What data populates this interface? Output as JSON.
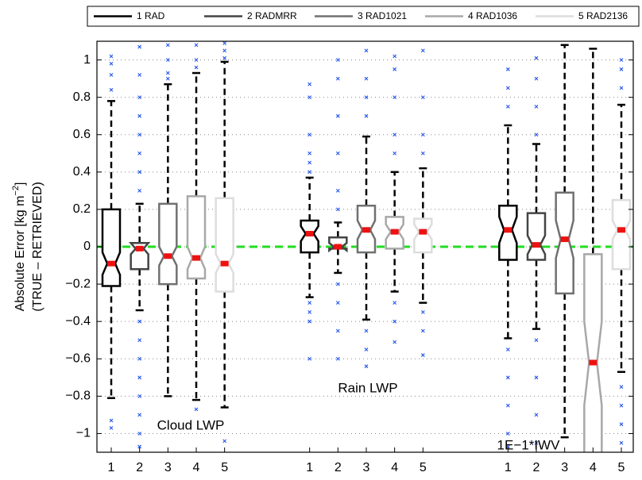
{
  "chart_data": {
    "type": "box",
    "ylabel": "Absolute Error [kg m",
    "ylabel_superscript": "−2",
    "ylabel_suffix": "]",
    "ylabel2": "(TRUE – RETRIEVED)",
    "categories": [
      "1",
      "2",
      "3",
      "4",
      "5"
    ],
    "groups": [
      "Cloud LWP",
      "Rain LWP",
      "1E−1*IWV"
    ],
    "ylim": [
      -1.1,
      1.1
    ],
    "yticks": [
      {
        "value": -1,
        "label": "−1"
      },
      {
        "value": -0.8,
        "label": "−0.8"
      },
      {
        "value": -0.6,
        "label": "−0.6"
      },
      {
        "value": -0.4,
        "label": "−0.4"
      },
      {
        "value": -0.2,
        "label": "−0.2"
      },
      0,
      0.2,
      0.4,
      0.6,
      0.8,
      1
    ],
    "grid": true,
    "reference_line": 0,
    "reference_color": "#22dd22",
    "median_color": "#ee1111",
    "outlier_color": "#2255ee",
    "series": [
      {
        "name": "1 RAD",
        "color": "#000000",
        "low": [
          -0.81,
          -0.27,
          -0.49
        ],
        "q1": [
          -0.21,
          -0.03,
          -0.07
        ],
        "notch_low": [
          -0.15,
          0.03,
          0.02
        ],
        "median": [
          -0.09,
          0.07,
          0.09
        ],
        "notch_high": [
          -0.03,
          0.11,
          0.16
        ],
        "q3": [
          0.2,
          0.14,
          0.22
        ],
        "high": [
          0.78,
          0.37,
          0.65
        ],
        "outliers": [
          [
            1.02,
            0.98,
            0.92,
            0.84,
            -0.93,
            -0.97
          ],
          [
            0.87,
            0.8,
            0.6,
            0.5,
            0.45,
            0.4,
            -0.3,
            -0.35,
            -0.4,
            -0.6
          ],
          [
            0.95,
            0.85,
            0.75,
            -0.55,
            -0.7,
            -0.85,
            -1.0,
            -1.07
          ]
        ]
      },
      {
        "name": "2 RADMRR",
        "color": "#444444",
        "low": [
          -0.34,
          -0.14,
          -0.44
        ],
        "q1": [
          -0.12,
          -0.01,
          -0.07
        ],
        "notch_low": [
          -0.04,
          -0.02,
          -0.04
        ],
        "median": [
          -0.01,
          0.0,
          0.01
        ],
        "notch_high": [
          0.02,
          0.02,
          0.06
        ],
        "q3": [
          0.02,
          0.05,
          0.18
        ],
        "high": [
          0.23,
          0.13,
          0.55
        ],
        "outliers": [
          [
            1.07,
            0.92,
            0.8,
            0.7,
            0.6,
            0.5,
            0.4,
            0.3,
            -0.4,
            -0.5,
            -0.6,
            -0.7,
            -0.8,
            -0.9,
            -1.0,
            -1.07
          ],
          [
            1.0,
            0.9,
            0.7,
            0.5,
            0.3,
            0.2,
            -0.2,
            -0.3,
            -0.45,
            -0.6
          ],
          [
            1.01,
            0.9,
            0.75,
            0.6,
            -0.5,
            -0.7,
            -0.9,
            -1.05
          ]
        ]
      },
      {
        "name": "3 RAD1021",
        "color": "#707070",
        "low": [
          -0.8,
          -0.39,
          -1.02
        ],
        "q1": [
          -0.2,
          -0.03,
          -0.25
        ],
        "notch_low": [
          -0.1,
          0.04,
          -0.06
        ],
        "median": [
          -0.05,
          0.09,
          0.04
        ],
        "notch_high": [
          0.0,
          0.14,
          0.14
        ],
        "q3": [
          0.23,
          0.22,
          0.29
        ],
        "high": [
          0.87,
          0.59,
          1.08
        ],
        "outliers": [
          [
            1.08,
            1.0,
            0.93,
            0.9
          ],
          [
            1.05,
            0.9,
            0.8,
            0.7,
            -0.45,
            -0.55,
            -0.64
          ],
          []
        ]
      },
      {
        "name": "4 RAD1036",
        "color": "#a8a8a8",
        "low": [
          -0.82,
          -0.24,
          null
        ],
        "q1": [
          -0.17,
          -0.01,
          -1.2
        ],
        "notch_low": [
          -0.12,
          0.04,
          -0.85
        ],
        "median": [
          -0.06,
          0.08,
          -0.62
        ],
        "notch_high": [
          0.0,
          0.12,
          -0.4
        ],
        "q3": [
          0.27,
          0.16,
          -0.04
        ],
        "high": [
          0.93,
          0.4,
          1.06
        ],
        "outliers": [
          [
            1.08,
            1.0,
            0.96,
            -0.87
          ],
          [
            1.02,
            0.95,
            0.8,
            0.6,
            0.5,
            -0.3,
            -0.4,
            -0.51
          ],
          []
        ]
      },
      {
        "name": "5 RAD2136",
        "color": "#dddddd",
        "low": [
          -0.86,
          -0.3,
          -0.67
        ],
        "q1": [
          -0.24,
          -0.03,
          -0.12
        ],
        "notch_low": [
          -0.14,
          0.04,
          0.04
        ],
        "median": [
          -0.09,
          0.08,
          0.09
        ],
        "notch_high": [
          -0.04,
          0.12,
          0.14
        ],
        "q3": [
          0.26,
          0.15,
          0.25
        ],
        "high": [
          0.99,
          0.42,
          0.76
        ],
        "outliers": [
          [
            1.09,
            1.05,
            1.01,
            -1.04
          ],
          [
            1.05,
            0.8,
            0.6,
            0.5,
            -0.35,
            -0.45,
            -0.58
          ],
          [
            1.0,
            0.95,
            0.85,
            -0.75,
            -0.85,
            -0.95,
            -1.05
          ]
        ]
      }
    ]
  }
}
